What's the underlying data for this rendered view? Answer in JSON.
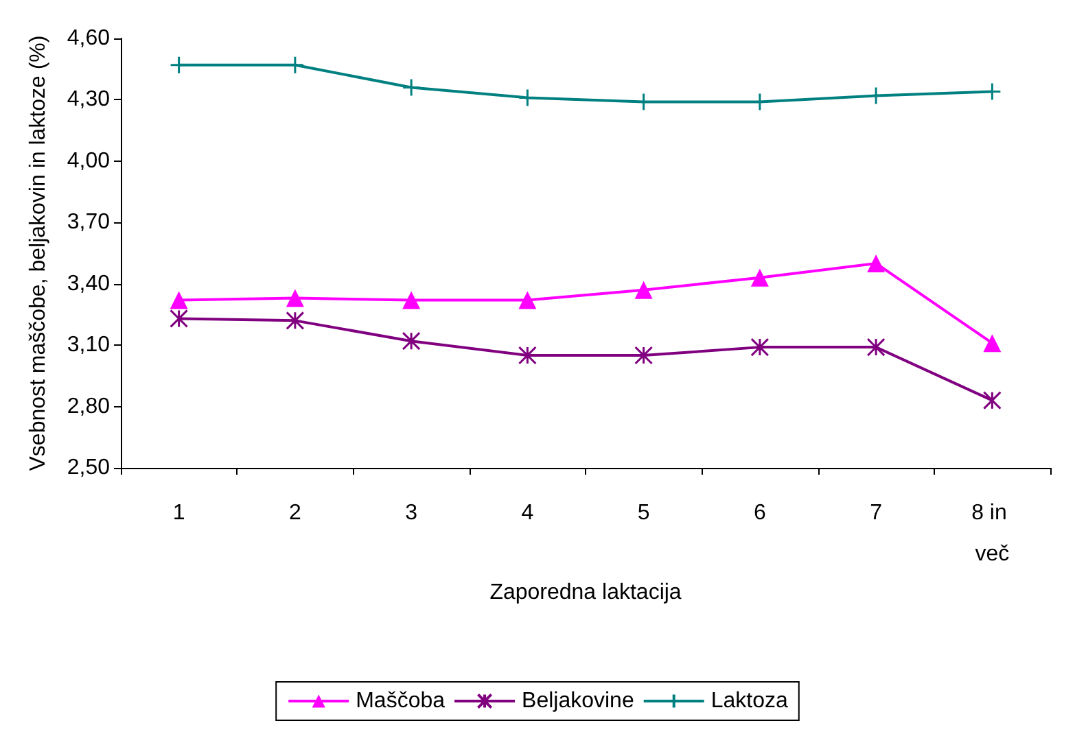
{
  "chart_data": {
    "type": "line",
    "xlabel": "Zaporedna laktacija",
    "ylabel": "Vsebnost maščobe, beljakovin in laktoze (%)",
    "categories": [
      "1",
      "2",
      "3",
      "4",
      "5",
      "6",
      "7",
      "8 in več"
    ],
    "series": [
      {
        "name": "Maščoba",
        "color": "#ff00ff",
        "marker": "triangle",
        "values": [
          3.32,
          3.33,
          3.32,
          3.32,
          3.37,
          3.43,
          3.5,
          3.11
        ]
      },
      {
        "name": "Beljakovine",
        "color": "#800080",
        "marker": "cross",
        "values": [
          3.23,
          3.22,
          3.12,
          3.05,
          3.05,
          3.09,
          3.09,
          2.83
        ]
      },
      {
        "name": "Laktoza",
        "color": "#008080",
        "marker": "cross",
        "values": [
          4.47,
          4.47,
          4.36,
          4.31,
          4.29,
          4.29,
          4.32,
          4.34
        ]
      }
    ],
    "ylim": [
      2.5,
      4.6
    ],
    "yticks": [
      {
        "value": 2.5,
        "label": "2,50"
      },
      {
        "value": 2.8,
        "label": "2,80"
      },
      {
        "value": 3.1,
        "label": "3,10"
      },
      {
        "value": 3.4,
        "label": "3,40"
      },
      {
        "value": 3.7,
        "label": "3,70"
      },
      {
        "value": 4.0,
        "label": "4,00"
      },
      {
        "value": 4.3,
        "label": "4,30"
      },
      {
        "value": 4.6,
        "label": "4,60"
      }
    ],
    "grid": false,
    "legend": "bottom"
  }
}
